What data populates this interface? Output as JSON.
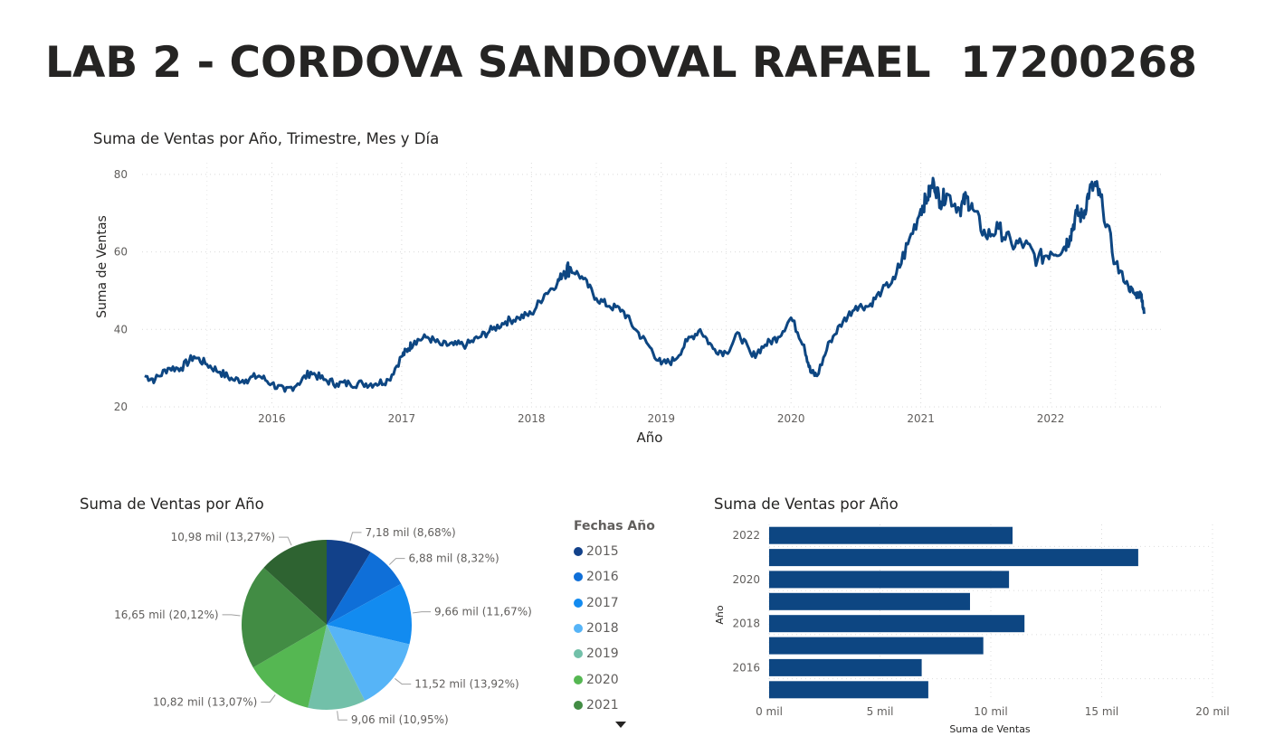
{
  "page": {
    "title": "LAB 2 - CORDOVA SANDOVAL RAFAEL  17200268"
  },
  "chart_data": [
    {
      "type": "line",
      "title": "Suma de Ventas por Año, Trimestre, Mes y Día",
      "xlabel": "Año",
      "ylabel": "Suma de Ventas",
      "x_ticks": [
        "2016",
        "2017",
        "2018",
        "2019",
        "2020",
        "2021",
        "2022"
      ],
      "y_ticks": [
        20,
        40,
        60,
        80
      ],
      "xlim": [
        2015.0,
        2022.85
      ],
      "ylim": [
        20,
        83
      ],
      "grid": true,
      "color": "#0d4682",
      "series": [
        {
          "x": [
            2015.02,
            2015.1,
            2015.2,
            2015.3,
            2015.4,
            2015.5,
            2015.6,
            2015.7,
            2015.8,
            2015.9,
            2016.0,
            2016.1,
            2016.2,
            2016.3,
            2016.4,
            2016.5,
            2016.6,
            2016.7,
            2016.8,
            2016.9,
            2017.0,
            2017.05,
            2017.1,
            2017.2,
            2017.3,
            2017.4,
            2017.5,
            2017.6,
            2017.7,
            2017.8,
            2017.9,
            2018.0,
            2018.1,
            2018.2,
            2018.25,
            2018.3,
            2018.4,
            2018.5,
            2018.6,
            2018.7,
            2018.8,
            2018.9,
            2019.0,
            2019.1,
            2019.2,
            2019.3,
            2019.4,
            2019.5,
            2019.6,
            2019.7,
            2019.8,
            2019.9,
            2020.0,
            2020.1,
            2020.15,
            2020.2,
            2020.3,
            2020.4,
            2020.5,
            2020.6,
            2020.7,
            2020.8,
            2020.9,
            2021.0,
            2021.05,
            2021.1,
            2021.15,
            2021.2,
            2021.3,
            2021.35,
            2021.4,
            2021.5,
            2021.6,
            2021.7,
            2021.8,
            2021.9,
            2022.0,
            2022.1,
            2022.15,
            2022.2,
            2022.25,
            2022.3,
            2022.35,
            2022.4,
            2022.5,
            2022.6,
            2022.65,
            2022.7,
            2022.72
          ],
          "y": [
            28,
            27,
            30,
            30,
            33,
            31,
            29,
            27,
            27,
            28,
            26,
            24,
            26,
            29,
            27,
            26,
            26,
            26,
            26,
            27,
            33,
            35,
            37,
            38,
            36,
            36,
            36,
            38,
            40,
            42,
            43,
            44,
            49,
            52,
            55,
            56,
            53,
            48,
            46,
            45,
            40,
            36,
            31,
            32,
            37,
            40,
            35,
            34,
            39,
            33,
            36,
            38,
            43,
            36,
            29,
            28,
            37,
            42,
            46,
            46,
            50,
            53,
            62,
            71,
            74,
            78,
            73,
            75,
            71,
            74,
            71,
            64,
            66,
            62,
            62,
            58,
            60,
            61,
            64,
            70,
            69,
            76,
            77,
            72,
            57,
            51,
            49,
            49,
            44
          ]
        }
      ]
    },
    {
      "type": "pie",
      "title": "Suma de Ventas por Año",
      "legend_title": "Fechas Año",
      "legend_placement": "right",
      "slices": [
        {
          "name": "2015",
          "value": 7.18,
          "label": "7,18 mil (8,68%)",
          "color": "#12418a"
        },
        {
          "name": "2016",
          "value": 6.88,
          "label": "6,88 mil (8,32%)",
          "color": "#0f6fd8"
        },
        {
          "name": "2017",
          "value": 9.66,
          "label": "9,66 mil (11,67%)",
          "color": "#128bf0"
        },
        {
          "name": "2018",
          "value": 11.52,
          "label": "11,52 mil (13,92%)",
          "color": "#56b4f7"
        },
        {
          "name": "2019",
          "value": 9.06,
          "label": "9,06 mil (10,95%)",
          "color": "#72c0a9"
        },
        {
          "name": "2020",
          "value": 10.82,
          "label": "10,82 mil (13,07%)",
          "color": "#55b752"
        },
        {
          "name": "2021",
          "value": 16.65,
          "label": "16,65 mil (20,12%)",
          "color": "#428c44"
        },
        {
          "name": "2022",
          "value": 10.98,
          "label": "10,98 mil (13,27%)",
          "color": "#2e6331"
        }
      ],
      "legend_visible": [
        "2015",
        "2016",
        "2017",
        "2018",
        "2019",
        "2020",
        "2021"
      ]
    },
    {
      "type": "bar",
      "orientation": "horizontal",
      "title": "Suma de Ventas por Año",
      "xlabel": "Suma de Ventas",
      "ylabel": "Año",
      "categories": [
        "2022",
        "2021",
        "2020",
        "2019",
        "2018",
        "2017",
        "2016",
        "2015"
      ],
      "y_tick_labels": [
        "2022",
        "",
        "2020",
        "",
        "2018",
        "",
        "2016",
        ""
      ],
      "values": [
        10.98,
        16.65,
        10.82,
        9.06,
        11.52,
        9.66,
        6.88,
        7.18
      ],
      "x_ticks": [
        "0 mil",
        "5 mil",
        "10 mil",
        "15 mil",
        "20 mil"
      ],
      "xlim": [
        0,
        20
      ],
      "grid": true,
      "color": "#0d4682"
    }
  ]
}
